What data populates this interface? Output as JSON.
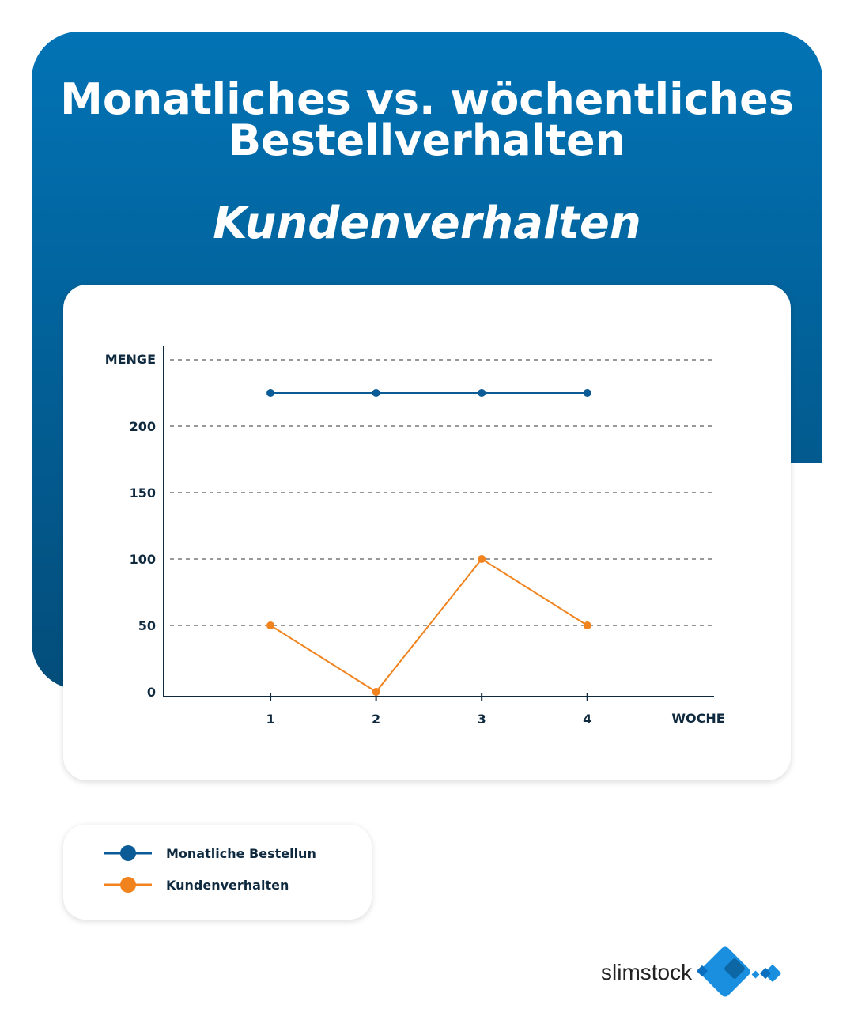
{
  "header": {
    "title_line1": "Monatliches vs. wöchentliches",
    "title_line2": "Bestellverhalten",
    "subtitle": "Kundenverhalten"
  },
  "chart_data": {
    "type": "line",
    "xlabel": "WOCHE",
    "ylabel": "MENGE",
    "x": [
      1,
      2,
      3,
      4
    ],
    "x_ticks": [
      "1",
      "2",
      "3",
      "4"
    ],
    "y_ticks": [
      "0",
      "50",
      "100",
      "150",
      "200"
    ],
    "ylim": [
      0,
      250
    ],
    "xlim": [
      0,
      5.2
    ],
    "grid": "horizontal dashed",
    "legend_position": "bottom-left",
    "series": [
      {
        "name": "Monatliche Bestellun",
        "values": [
          225,
          225,
          225,
          225
        ],
        "color": "#0b5c96"
      },
      {
        "name": "Kundenverhalten",
        "values": [
          50,
          0,
          100,
          50
        ],
        "color": "#f0831e"
      }
    ]
  },
  "logo": {
    "text": "slimstock",
    "color": "#1a8fe0"
  }
}
